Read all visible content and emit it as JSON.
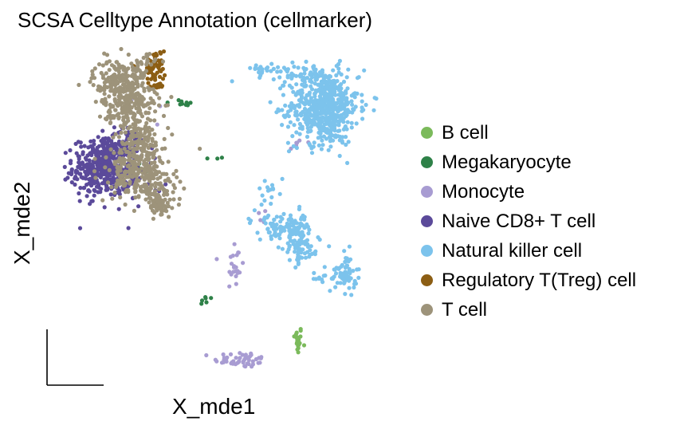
{
  "chart_data": {
    "type": "scatter",
    "title": "SCSA Celltype Annotation (cellmarker)",
    "xlabel": "X_mde1",
    "ylabel": "X_mde2",
    "ticks": "none",
    "grid": false,
    "axes": "short axis arrows at lower-left",
    "legend": "right",
    "xlim": [
      0,
      100
    ],
    "ylim": [
      0,
      100
    ],
    "point_size": "small",
    "series": [
      {
        "name": "B cell",
        "color": "#7bba5b",
        "clusters": [
          {
            "x": 73.3,
            "y": 13.5,
            "sx": 0.7,
            "sy": 2.2,
            "n": 20
          }
        ]
      },
      {
        "name": "Megakaryocyte",
        "color": "#2e8148",
        "clusters": [
          {
            "x": 40.0,
            "y": 85.5,
            "sx": 2.5,
            "sy": 0.7,
            "n": 9
          },
          {
            "x": 46.5,
            "y": 25.5,
            "sx": 1.4,
            "sy": 0.8,
            "n": 6
          },
          {
            "x": 28.5,
            "y": 66.5,
            "sx": 2.0,
            "sy": 1.0,
            "n": 5
          },
          {
            "x": 49.0,
            "y": 68.0,
            "sx": 1.5,
            "sy": 0.7,
            "n": 3
          }
        ]
      },
      {
        "name": "Monocyte",
        "color": "#a89cd2",
        "clusters": [
          {
            "x": 57.0,
            "y": 7.5,
            "sx": 4.0,
            "sy": 1.2,
            "n": 50
          },
          {
            "x": 55.0,
            "y": 36.0,
            "sx": 1.3,
            "sy": 4.5,
            "n": 22
          },
          {
            "x": 73.0,
            "y": 73.5,
            "sx": 1.5,
            "sy": 1.0,
            "n": 6
          },
          {
            "x": 28.0,
            "y": 82.0,
            "sx": 6.0,
            "sy": 6.0,
            "n": 5
          },
          {
            "x": 61.0,
            "y": 50.0,
            "sx": 2.0,
            "sy": 2.0,
            "n": 4
          }
        ]
      },
      {
        "name": "Naive CD8+ T cell",
        "color": "#5b4a9a",
        "clusters": [
          {
            "x": 17.0,
            "y": 66.0,
            "sx": 4.6,
            "sy": 4.4,
            "n": 420
          },
          {
            "x": 21.5,
            "y": 73.0,
            "sx": 3.2,
            "sy": 2.5,
            "n": 60
          },
          {
            "x": 26.0,
            "y": 63.0,
            "sx": 4.0,
            "sy": 4.0,
            "n": 25
          }
        ]
      },
      {
        "name": "Natural killer cell",
        "color": "#7cc3ec",
        "clusters": [
          {
            "x": 81.0,
            "y": 84.5,
            "sx": 5.0,
            "sy": 5.7,
            "n": 600
          },
          {
            "x": 73.5,
            "y": 95.0,
            "sx": 6.0,
            "sy": 1.3,
            "n": 50
          },
          {
            "x": 63.8,
            "y": 96.0,
            "sx": 1.8,
            "sy": 0.6,
            "n": 10
          },
          {
            "x": 68.5,
            "y": 48.0,
            "sx": 3.5,
            "sy": 1.6,
            "n": 70
          },
          {
            "x": 73.5,
            "y": 44.5,
            "sx": 1.8,
            "sy": 3.8,
            "n": 80
          },
          {
            "x": 75.0,
            "y": 41.5,
            "sx": 3.0,
            "sy": 2.0,
            "n": 30
          },
          {
            "x": 87.5,
            "y": 34.0,
            "sx": 1.6,
            "sy": 3.0,
            "n": 55
          },
          {
            "x": 82.5,
            "y": 32.5,
            "sx": 3.0,
            "sy": 1.0,
            "n": 22
          },
          {
            "x": 66.0,
            "y": 58.0,
            "sx": 3.0,
            "sy": 2.5,
            "n": 14
          },
          {
            "x": 62.5,
            "y": 50.0,
            "sx": 2.0,
            "sy": 2.0,
            "n": 10
          },
          {
            "x": 96.0,
            "y": 87.0,
            "sx": 0.5,
            "sy": 0.5,
            "n": 2
          }
        ]
      },
      {
        "name": "Regulatory T(Treg) cell",
        "color": "#8c5e14",
        "clusters": [
          {
            "x": 32.0,
            "y": 97.0,
            "sx": 1.4,
            "sy": 2.4,
            "n": 50
          },
          {
            "x": 32.5,
            "y": 91.5,
            "sx": 1.0,
            "sy": 1.5,
            "n": 12
          },
          {
            "x": 28.5,
            "y": 95.5,
            "sx": 1.8,
            "sy": 1.0,
            "n": 10
          }
        ]
      },
      {
        "name": "T cell",
        "color": "#9d937a",
        "clusters": [
          {
            "x": 21.5,
            "y": 92.0,
            "sx": 4.0,
            "sy": 3.5,
            "n": 220
          },
          {
            "x": 25.0,
            "y": 84.0,
            "sx": 4.0,
            "sy": 3.0,
            "n": 150
          },
          {
            "x": 27.0,
            "y": 74.0,
            "sx": 3.5,
            "sy": 3.5,
            "n": 120
          },
          {
            "x": 28.5,
            "y": 63.0,
            "sx": 4.5,
            "sy": 4.0,
            "n": 200
          },
          {
            "x": 33.0,
            "y": 55.0,
            "sx": 2.5,
            "sy": 2.5,
            "n": 80
          },
          {
            "x": 25.0,
            "y": 68.0,
            "sx": 3.5,
            "sy": 3.0,
            "n": 60
          },
          {
            "x": 28.0,
            "y": 98.0,
            "sx": 2.0,
            "sy": 1.5,
            "n": 20
          }
        ]
      }
    ]
  }
}
